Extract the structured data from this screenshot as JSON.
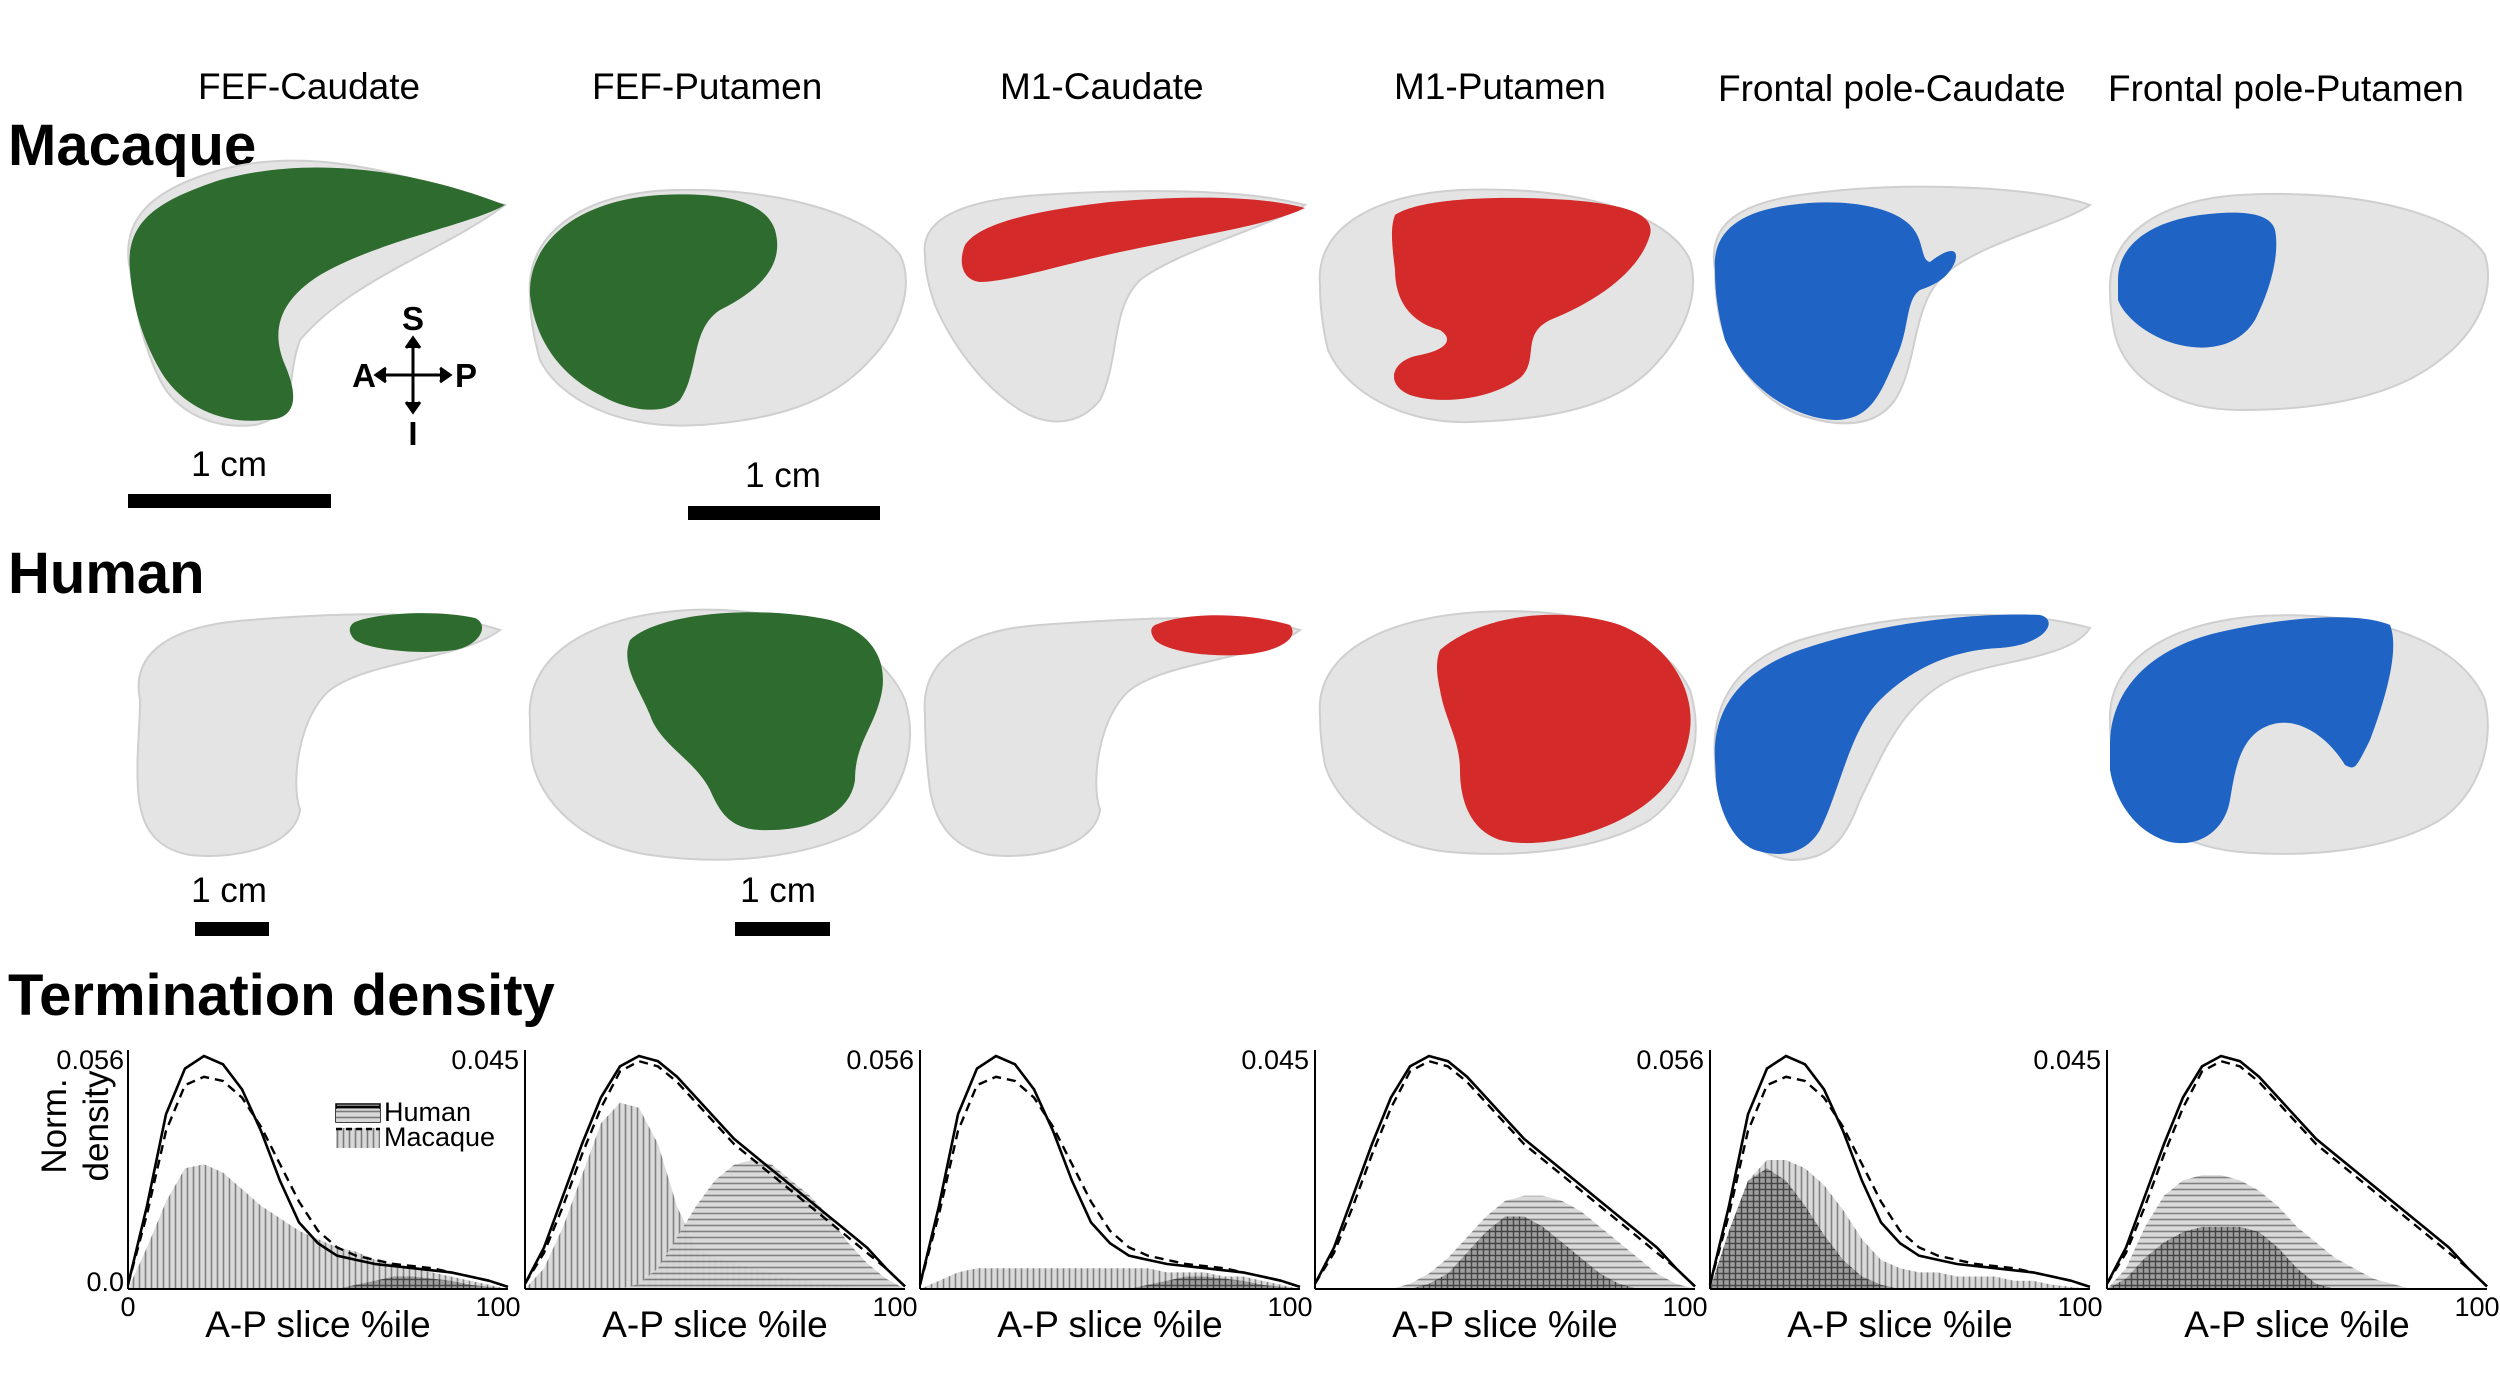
{
  "columns": [
    "FEF-Caudate",
    "FEF-Putamen",
    "M1-Caudate",
    "M1-Putamen",
    "Frontal pole-Caudate",
    "Frontal pole-Putamen"
  ],
  "rows": {
    "macaque": "Macaque",
    "human": "Human",
    "density": "Termination density"
  },
  "orientation": {
    "superior": "S",
    "inferior": "I",
    "anterior": "A",
    "posterior": "P"
  },
  "scale_bars": {
    "macaque_caudate": "1 cm",
    "macaque_putamen": "1 cm",
    "human_caudate": "1 cm",
    "human_putamen": "1 cm"
  },
  "colors": {
    "fef": "#2e6b2e",
    "m1": "#d42a2a",
    "frontal_pole": "#1f63c4",
    "structure": "#e4e4e4"
  },
  "legend": {
    "human": "Human",
    "macaque": "Macaque"
  },
  "chart_data": [
    {
      "type": "area",
      "panel": "FEF-Caudate",
      "xlabel": "A-P slice %ile",
      "ylabel": "Norm. density",
      "xlim": [
        0,
        100
      ],
      "ylim": [
        0,
        0.056
      ],
      "ytick_labels": [
        "0.0",
        "0.056"
      ],
      "xtick_labels": [
        "0",
        "100"
      ],
      "x": [
        0,
        5,
        10,
        15,
        20,
        25,
        30,
        35,
        40,
        45,
        50,
        55,
        60,
        65,
        70,
        75,
        80,
        85,
        90,
        95,
        100
      ],
      "series": [
        {
          "name": "Human",
          "values": [
            0.001,
            0.02,
            0.042,
            0.053,
            0.056,
            0.054,
            0.048,
            0.038,
            0.026,
            0.016,
            0.011,
            0.008,
            0.007,
            0.006,
            0.0055,
            0.005,
            0.0045,
            0.004,
            0.003,
            0.002,
            0.0005
          ]
        },
        {
          "name": "Macaque",
          "values": [
            0.001,
            0.018,
            0.038,
            0.049,
            0.051,
            0.05,
            0.046,
            0.039,
            0.03,
            0.021,
            0.014,
            0.01,
            0.008,
            0.007,
            0.006,
            0.0055,
            0.005,
            0.004,
            0.003,
            0.002,
            0.0005
          ]
        },
        {
          "name": "Human – caudate termination",
          "values": [
            0.0,
            0.01,
            0.021,
            0.029,
            0.03,
            0.028,
            0.024,
            0.02,
            0.017,
            0.014,
            0.012,
            0.01,
            0.009,
            0.007,
            0.006,
            0.005,
            0.004,
            0.003,
            0.002,
            0.001,
            0.0
          ]
        },
        {
          "name": "Macaque – caudate termination",
          "values": [
            0.0,
            0.0,
            0.0,
            0.0,
            0.0,
            0.0,
            0.0,
            0.0,
            0.0,
            0.0,
            0.0,
            0.0,
            0.001,
            0.002,
            0.003,
            0.003,
            0.0025,
            0.002,
            0.001,
            0.0005,
            0.0
          ]
        }
      ]
    },
    {
      "type": "area",
      "panel": "FEF-Putamen",
      "xlabel": "A-P slice %ile",
      "xlim": [
        0,
        100
      ],
      "ylim": [
        0,
        0.045
      ],
      "ytick_labels": [
        "0.045"
      ],
      "xtick_labels": [
        "100"
      ],
      "x": [
        0,
        5,
        10,
        15,
        20,
        25,
        30,
        35,
        40,
        45,
        50,
        55,
        60,
        65,
        70,
        75,
        80,
        85,
        90,
        95,
        100
      ],
      "series": [
        {
          "name": "Human",
          "values": [
            0.001,
            0.008,
            0.018,
            0.028,
            0.037,
            0.043,
            0.045,
            0.044,
            0.041,
            0.037,
            0.033,
            0.029,
            0.026,
            0.023,
            0.02,
            0.017,
            0.014,
            0.011,
            0.008,
            0.004,
            0.0005
          ]
        },
        {
          "name": "Macaque",
          "values": [
            0.001,
            0.007,
            0.016,
            0.026,
            0.035,
            0.042,
            0.044,
            0.043,
            0.04,
            0.036,
            0.032,
            0.028,
            0.025,
            0.022,
            0.019,
            0.016,
            0.013,
            0.01,
            0.007,
            0.004,
            0.0005
          ]
        },
        {
          "name": "Human – putamen termination",
          "values": [
            0.0,
            0.004,
            0.012,
            0.022,
            0.032,
            0.036,
            0.035,
            0.028,
            0.016,
            0.008,
            0.006,
            0.005,
            0.004,
            0.003,
            0.002,
            0.0015,
            0.001,
            0.0005,
            0.0,
            0.0,
            0.0
          ]
        },
        {
          "name": "Macaque – putamen termination",
          "values": [
            0.0,
            0.0,
            0.0,
            0.0,
            0.0,
            0.0,
            0.001,
            0.004,
            0.01,
            0.016,
            0.021,
            0.024,
            0.025,
            0.024,
            0.021,
            0.018,
            0.014,
            0.009,
            0.005,
            0.002,
            0.0
          ]
        }
      ]
    },
    {
      "type": "area",
      "panel": "M1-Caudate",
      "xlabel": "A-P slice %ile",
      "xlim": [
        0,
        100
      ],
      "ylim": [
        0,
        0.056
      ],
      "ytick_labels": [
        "0.056"
      ],
      "xtick_labels": [
        "100"
      ],
      "x": [
        0,
        5,
        10,
        15,
        20,
        25,
        30,
        35,
        40,
        45,
        50,
        55,
        60,
        65,
        70,
        75,
        80,
        85,
        90,
        95,
        100
      ],
      "series": [
        {
          "name": "Human",
          "values": [
            0.001,
            0.02,
            0.042,
            0.053,
            0.056,
            0.054,
            0.048,
            0.038,
            0.026,
            0.016,
            0.011,
            0.008,
            0.007,
            0.006,
            0.0055,
            0.005,
            0.0045,
            0.004,
            0.003,
            0.002,
            0.0005
          ]
        },
        {
          "name": "Macaque",
          "values": [
            0.001,
            0.018,
            0.038,
            0.049,
            0.051,
            0.05,
            0.046,
            0.039,
            0.03,
            0.021,
            0.014,
            0.01,
            0.008,
            0.007,
            0.006,
            0.0055,
            0.005,
            0.004,
            0.003,
            0.002,
            0.0005
          ]
        },
        {
          "name": "Human – caudate termination",
          "values": [
            0.0,
            0.002,
            0.004,
            0.005,
            0.005,
            0.005,
            0.005,
            0.005,
            0.005,
            0.005,
            0.005,
            0.005,
            0.005,
            0.004,
            0.004,
            0.004,
            0.003,
            0.003,
            0.002,
            0.001,
            0.0
          ]
        },
        {
          "name": "Macaque – caudate termination",
          "values": [
            0.0,
            0.0,
            0.0,
            0.0,
            0.0,
            0.0,
            0.0,
            0.0,
            0.0,
            0.0,
            0.0,
            0.0,
            0.001,
            0.002,
            0.003,
            0.003,
            0.0025,
            0.002,
            0.001,
            0.0005,
            0.0
          ]
        }
      ]
    },
    {
      "type": "area",
      "panel": "M1-Putamen",
      "xlabel": "A-P slice %ile",
      "xlim": [
        0,
        100
      ],
      "ylim": [
        0,
        0.045
      ],
      "ytick_labels": [
        "0.045"
      ],
      "xtick_labels": [
        "100"
      ],
      "x": [
        0,
        5,
        10,
        15,
        20,
        25,
        30,
        35,
        40,
        45,
        50,
        55,
        60,
        65,
        70,
        75,
        80,
        85,
        90,
        95,
        100
      ],
      "series": [
        {
          "name": "Human",
          "values": [
            0.001,
            0.008,
            0.018,
            0.028,
            0.037,
            0.043,
            0.045,
            0.044,
            0.041,
            0.037,
            0.033,
            0.029,
            0.026,
            0.023,
            0.02,
            0.017,
            0.014,
            0.011,
            0.008,
            0.004,
            0.0005
          ]
        },
        {
          "name": "Macaque",
          "values": [
            0.001,
            0.007,
            0.016,
            0.026,
            0.035,
            0.042,
            0.044,
            0.043,
            0.04,
            0.036,
            0.032,
            0.028,
            0.025,
            0.022,
            0.019,
            0.016,
            0.013,
            0.01,
            0.007,
            0.004,
            0.0005
          ]
        },
        {
          "name": "Human – putamen termination",
          "values": [
            0.0,
            0.0,
            0.0,
            0.0,
            0.0,
            0.001,
            0.003,
            0.006,
            0.01,
            0.014,
            0.017,
            0.018,
            0.018,
            0.017,
            0.015,
            0.012,
            0.009,
            0.006,
            0.003,
            0.001,
            0.0
          ]
        },
        {
          "name": "Macaque – putamen termination",
          "values": [
            0.0,
            0.0,
            0.0,
            0.0,
            0.0,
            0.0,
            0.001,
            0.003,
            0.007,
            0.011,
            0.014,
            0.014,
            0.012,
            0.009,
            0.006,
            0.003,
            0.001,
            0.0,
            0.0,
            0.0,
            0.0
          ]
        }
      ]
    },
    {
      "type": "area",
      "panel": "Frontal pole-Caudate",
      "xlabel": "A-P slice %ile",
      "xlim": [
        0,
        100
      ],
      "ylim": [
        0,
        0.056
      ],
      "ytick_labels": [
        "0.056"
      ],
      "xtick_labels": [
        "100"
      ],
      "x": [
        0,
        5,
        10,
        15,
        20,
        25,
        30,
        35,
        40,
        45,
        50,
        55,
        60,
        65,
        70,
        75,
        80,
        85,
        90,
        95,
        100
      ],
      "series": [
        {
          "name": "Human",
          "values": [
            0.001,
            0.02,
            0.042,
            0.053,
            0.056,
            0.054,
            0.048,
            0.038,
            0.026,
            0.016,
            0.011,
            0.008,
            0.007,
            0.006,
            0.0055,
            0.005,
            0.0045,
            0.004,
            0.003,
            0.002,
            0.0005
          ]
        },
        {
          "name": "Macaque",
          "values": [
            0.001,
            0.018,
            0.038,
            0.049,
            0.051,
            0.05,
            0.046,
            0.039,
            0.03,
            0.021,
            0.014,
            0.01,
            0.008,
            0.007,
            0.006,
            0.0055,
            0.005,
            0.004,
            0.003,
            0.002,
            0.0005
          ]
        },
        {
          "name": "Human – caudate termination",
          "values": [
            0.0,
            0.012,
            0.026,
            0.031,
            0.031,
            0.029,
            0.025,
            0.019,
            0.012,
            0.007,
            0.005,
            0.004,
            0.004,
            0.003,
            0.003,
            0.003,
            0.002,
            0.002,
            0.001,
            0.0005,
            0.0
          ]
        },
        {
          "name": "Macaque – caudate termination",
          "values": [
            0.0,
            0.014,
            0.026,
            0.029,
            0.026,
            0.02,
            0.013,
            0.007,
            0.003,
            0.001,
            0.0,
            0.0,
            0.0,
            0.0,
            0.0,
            0.0,
            0.0,
            0.0,
            0.0,
            0.0,
            0.0
          ]
        }
      ]
    },
    {
      "type": "area",
      "panel": "Frontal pole-Putamen",
      "xlabel": "A-P slice %ile",
      "xlim": [
        0,
        100
      ],
      "ylim": [
        0,
        0.045
      ],
      "ytick_labels": [
        "0.045"
      ],
      "xtick_labels": [
        "100"
      ],
      "x": [
        0,
        5,
        10,
        15,
        20,
        25,
        30,
        35,
        40,
        45,
        50,
        55,
        60,
        65,
        70,
        75,
        80,
        85,
        90,
        95,
        100
      ],
      "series": [
        {
          "name": "Human",
          "values": [
            0.001,
            0.008,
            0.018,
            0.028,
            0.037,
            0.043,
            0.045,
            0.044,
            0.041,
            0.037,
            0.033,
            0.029,
            0.026,
            0.023,
            0.02,
            0.017,
            0.014,
            0.011,
            0.008,
            0.004,
            0.0005
          ]
        },
        {
          "name": "Macaque",
          "values": [
            0.001,
            0.007,
            0.016,
            0.026,
            0.035,
            0.042,
            0.044,
            0.043,
            0.04,
            0.036,
            0.032,
            0.028,
            0.025,
            0.022,
            0.019,
            0.016,
            0.013,
            0.01,
            0.007,
            0.004,
            0.0005
          ]
        },
        {
          "name": "Human – putamen termination",
          "values": [
            0.0,
            0.004,
            0.012,
            0.018,
            0.021,
            0.022,
            0.022,
            0.021,
            0.019,
            0.016,
            0.012,
            0.009,
            0.006,
            0.004,
            0.002,
            0.001,
            0.0,
            0.0,
            0.0,
            0.0,
            0.0
          ]
        },
        {
          "name": "Macaque – putamen termination",
          "values": [
            0.0,
            0.002,
            0.006,
            0.009,
            0.011,
            0.012,
            0.012,
            0.012,
            0.011,
            0.008,
            0.004,
            0.001,
            0.0,
            0.0,
            0.0,
            0.0,
            0.0,
            0.0,
            0.0,
            0.0,
            0.0
          ]
        }
      ]
    }
  ]
}
